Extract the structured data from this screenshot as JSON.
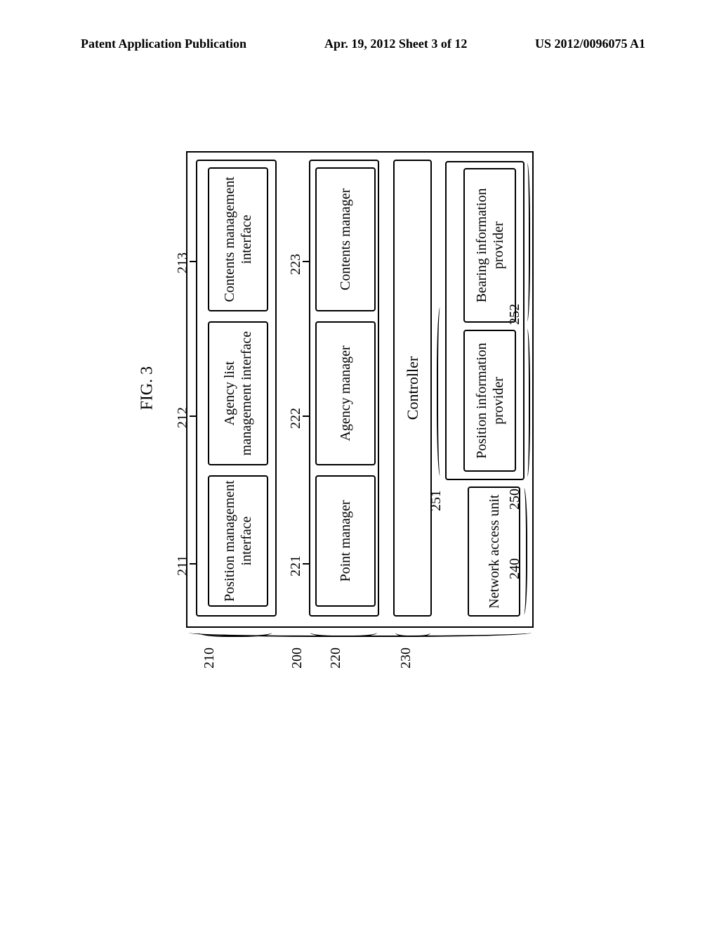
{
  "header": {
    "left": "Patent Application Publication",
    "date": "Apr. 19, 2012  Sheet 3 of 12",
    "right": "US 2012/0096075 A1"
  },
  "figure": {
    "label": "FIG. 3",
    "type": "block-diagram"
  },
  "refs": {
    "r200": "200",
    "r210": "210",
    "r211": "211",
    "r212": "212",
    "r213": "213",
    "r220": "220",
    "r221": "221",
    "r222": "222",
    "r223": "223",
    "r230": "230",
    "r240": "240",
    "r250": "250",
    "r251": "251",
    "r252": "252"
  },
  "boxes": {
    "b211": "Position management interface",
    "b212": "Agency list management interface",
    "b213": "Contents management interface",
    "b221": "Point manager",
    "b222": "Agency manager",
    "b223": "Contents manager",
    "b230": "Controller",
    "b240": "Network access unit",
    "b251": "Position information provider",
    "b252": "Bearing information provider"
  },
  "style": {
    "border_color": "#000000",
    "background": "#ffffff",
    "font_family": "Times New Roman, serif",
    "label_fontsize": 20,
    "box_fontsize": 20,
    "header_fontsize": 18,
    "figure_fontsize": 24,
    "border_width": 2,
    "border_radius": 4
  }
}
